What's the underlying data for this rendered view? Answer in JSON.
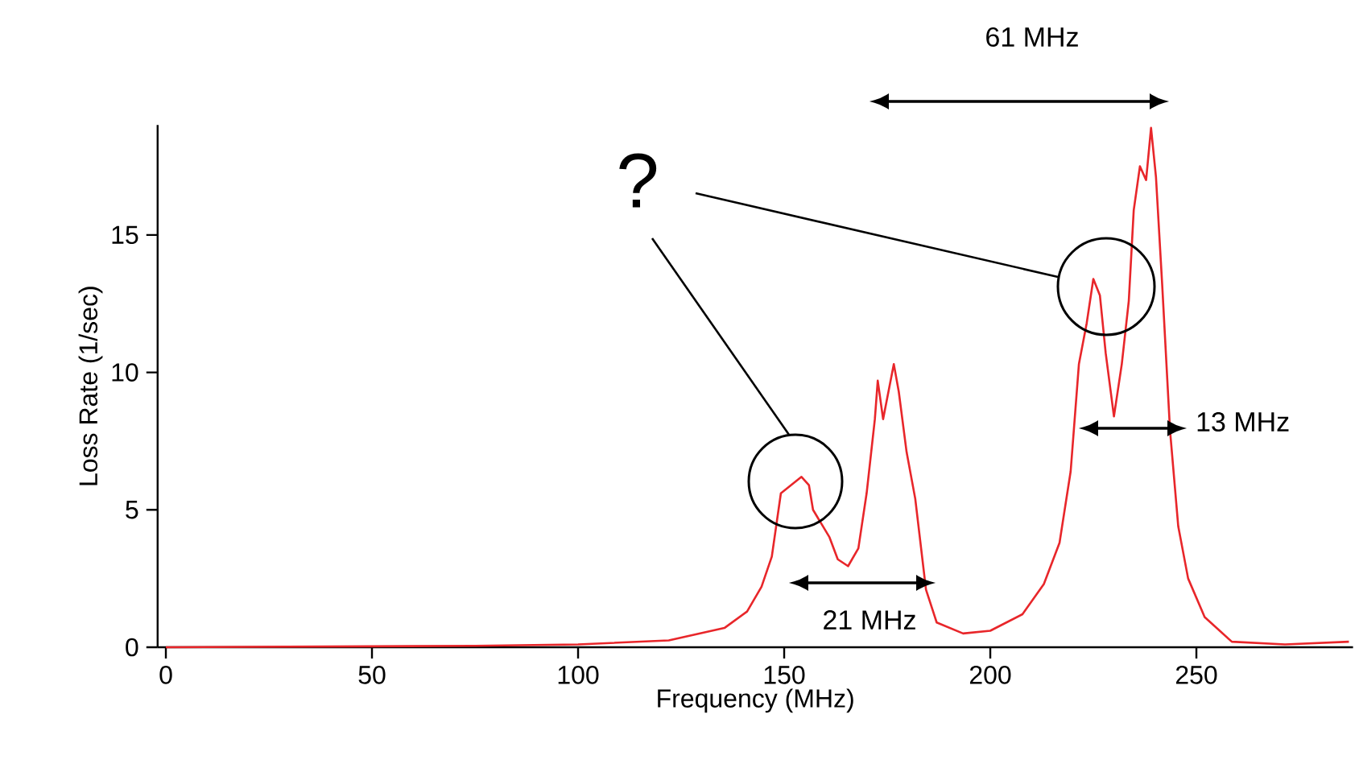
{
  "chart_data": {
    "type": "line",
    "xlabel": "Frequency (MHz)",
    "ylabel": "Loss Rate (1/sec)",
    "xlim": [
      -2,
      288
    ],
    "ylim": [
      0,
      19
    ],
    "xticks": [
      0,
      50,
      100,
      150,
      200,
      250
    ],
    "yticks": [
      0,
      5,
      10,
      15
    ],
    "annotations": [
      "?",
      "61 MHz",
      "21 MHz",
      "13 MHz"
    ],
    "series": [
      {
        "color": "#e8262a",
        "x": [
          0,
          75,
          100,
          122,
          135.5,
          141,
          144.5,
          147,
          149.2,
          154.2,
          156,
          157,
          161,
          163,
          165.5,
          168,
          170,
          172,
          172.7,
          174,
          176.6,
          177.8,
          179.7,
          181.8,
          184.4,
          187,
          193.4,
          200,
          207.8,
          213,
          216.8,
          219.5,
          221.5,
          223.4,
          225,
          226.6,
          228,
          230,
          231.9,
          233.6,
          234.8,
          236.3,
          237.8,
          239,
          240.2,
          241.7,
          243.6,
          245.6,
          248,
          252,
          258.6,
          271.5,
          287
        ],
        "values": [
          0,
          0.05,
          0.1,
          0.25,
          0.7,
          1.3,
          2.2,
          3.3,
          5.6,
          6.2,
          5.9,
          5.0,
          4.0,
          3.2,
          2.95,
          3.6,
          5.6,
          8.3,
          9.7,
          8.3,
          10.3,
          9.3,
          7.1,
          5.4,
          2.1,
          0.9,
          0.5,
          0.6,
          1.2,
          2.3,
          3.8,
          6.4,
          10.3,
          11.8,
          13.4,
          12.8,
          10.7,
          8.4,
          10.3,
          12.6,
          15.9,
          17.5,
          17.0,
          18.9,
          17.1,
          13.2,
          7.9,
          4.4,
          2.5,
          1.1,
          0.2,
          0.1,
          0.2
        ]
      }
    ]
  }
}
